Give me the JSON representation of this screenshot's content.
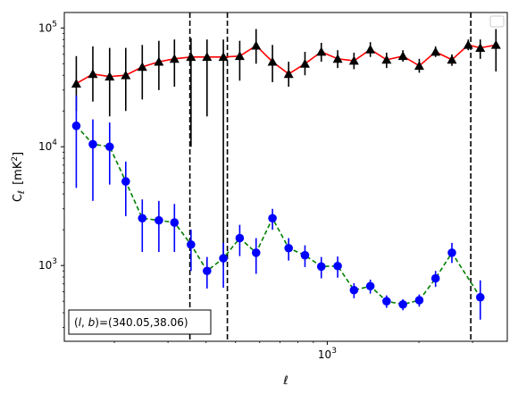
{
  "chart_data": {
    "type": "scatter",
    "x_scale": "log",
    "y_scale": "log",
    "xlabel": "ℓ",
    "ylabel": "C_ℓ  [mK²]",
    "xlim": [
      137,
      3900
    ],
    "ylim": [
      230,
      135000
    ],
    "x_ticks": [
      {
        "value": 1000,
        "base": "10",
        "exp": "3"
      }
    ],
    "y_ticks": [
      {
        "value": 1000,
        "base": "10",
        "exp": "3"
      },
      {
        "value": 10000,
        "base": "10",
        "exp": "4"
      },
      {
        "value": 100000,
        "base": "10",
        "exp": "5"
      }
    ],
    "legend": {
      "placement": "top-right",
      "entries": []
    },
    "vertical_lines": [
      {
        "x": 354,
        "style": "dashed",
        "color": "#000000"
      },
      {
        "x": 470,
        "style": "dashed",
        "color": "#000000"
      },
      {
        "x": 2960,
        "style": "dashed",
        "color": "#000000"
      }
    ],
    "series": [
      {
        "marker": "triangle",
        "marker_color": "#000000",
        "line_color": "#ff0000",
        "line_style": "solid",
        "points": [
          {
            "x": 150,
            "y": 34000,
            "ylo": 20000,
            "yhi": 58000
          },
          {
            "x": 170,
            "y": 41000,
            "ylo": 24000,
            "yhi": 70000
          },
          {
            "x": 193,
            "y": 39000,
            "ylo": 18000,
            "yhi": 68000
          },
          {
            "x": 218,
            "y": 40000,
            "ylo": 20000,
            "yhi": 68000
          },
          {
            "x": 247,
            "y": 47000,
            "ylo": 25000,
            "yhi": 72000
          },
          {
            "x": 280,
            "y": 52000,
            "ylo": 30000,
            "yhi": 78000
          },
          {
            "x": 315,
            "y": 55000,
            "ylo": 32000,
            "yhi": 80000
          },
          {
            "x": 357,
            "y": 57000,
            "ylo": 10000,
            "yhi": 82000
          },
          {
            "x": 403,
            "y": 57000,
            "ylo": 18000,
            "yhi": 80000
          },
          {
            "x": 456,
            "y": 57000,
            "ylo": 1000,
            "yhi": 80000
          },
          {
            "x": 516,
            "y": 58000,
            "ylo": 36000,
            "yhi": 78000
          },
          {
            "x": 584,
            "y": 71000,
            "ylo": 50000,
            "yhi": 98000
          },
          {
            "x": 661,
            "y": 52000,
            "ylo": 35000,
            "yhi": 72000
          },
          {
            "x": 747,
            "y": 41000,
            "ylo": 32000,
            "yhi": 52000
          },
          {
            "x": 845,
            "y": 50000,
            "ylo": 40000,
            "yhi": 63000
          },
          {
            "x": 956,
            "y": 63000,
            "ylo": 52000,
            "yhi": 75000
          },
          {
            "x": 1082,
            "y": 55000,
            "ylo": 46000,
            "yhi": 65000
          },
          {
            "x": 1224,
            "y": 53000,
            "ylo": 45000,
            "yhi": 62000
          },
          {
            "x": 1385,
            "y": 66000,
            "ylo": 57000,
            "yhi": 76000
          },
          {
            "x": 1566,
            "y": 54000,
            "ylo": 46000,
            "yhi": 62000
          },
          {
            "x": 1772,
            "y": 58000,
            "ylo": 52000,
            "yhi": 65000
          },
          {
            "x": 2005,
            "y": 48000,
            "ylo": 42000,
            "yhi": 55000
          },
          {
            "x": 2268,
            "y": 63000,
            "ylo": 57000,
            "yhi": 70000
          },
          {
            "x": 2566,
            "y": 54000,
            "ylo": 48000,
            "yhi": 60000
          },
          {
            "x": 2903,
            "y": 72000,
            "ylo": 65000,
            "yhi": 80000
          },
          {
            "x": 3180,
            "y": 68000,
            "ylo": 55000,
            "yhi": 80000
          },
          {
            "x": 3580,
            "y": 72000,
            "ylo": 43000,
            "yhi": 98000
          }
        ]
      },
      {
        "marker": "circle",
        "marker_color": "#0000ff",
        "line_color": "#008000",
        "line_style": "dashed",
        "points": [
          {
            "x": 150,
            "y": 15000,
            "ylo": 4500,
            "yhi": 27000
          },
          {
            "x": 170,
            "y": 10500,
            "ylo": 3500,
            "yhi": 17000
          },
          {
            "x": 193,
            "y": 10000,
            "ylo": 4800,
            "yhi": 16000
          },
          {
            "x": 218,
            "y": 5100,
            "ylo": 2600,
            "yhi": 7500
          },
          {
            "x": 247,
            "y": 2500,
            "ylo": 1300,
            "yhi": 3600
          },
          {
            "x": 280,
            "y": 2400,
            "ylo": 1300,
            "yhi": 3500
          },
          {
            "x": 315,
            "y": 2300,
            "ylo": 1300,
            "yhi": 3300
          },
          {
            "x": 357,
            "y": 1500,
            "ylo": 900,
            "yhi": 2000
          },
          {
            "x": 403,
            "y": 900,
            "ylo": 640,
            "yhi": 1180
          },
          {
            "x": 456,
            "y": 1150,
            "ylo": 650,
            "yhi": 1550
          },
          {
            "x": 516,
            "y": 1700,
            "ylo": 1200,
            "yhi": 2200
          },
          {
            "x": 584,
            "y": 1280,
            "ylo": 850,
            "yhi": 1700
          },
          {
            "x": 661,
            "y": 2500,
            "ylo": 2000,
            "yhi": 3000
          },
          {
            "x": 747,
            "y": 1400,
            "ylo": 1100,
            "yhi": 1700
          },
          {
            "x": 845,
            "y": 1220,
            "ylo": 970,
            "yhi": 1480
          },
          {
            "x": 956,
            "y": 980,
            "ylo": 780,
            "yhi": 1180
          },
          {
            "x": 1082,
            "y": 990,
            "ylo": 790,
            "yhi": 1190
          },
          {
            "x": 1224,
            "y": 620,
            "ylo": 530,
            "yhi": 710
          },
          {
            "x": 1385,
            "y": 670,
            "ylo": 580,
            "yhi": 760
          },
          {
            "x": 1566,
            "y": 500,
            "ylo": 440,
            "yhi": 560
          },
          {
            "x": 1772,
            "y": 470,
            "ylo": 420,
            "yhi": 520
          },
          {
            "x": 2005,
            "y": 510,
            "ylo": 450,
            "yhi": 570
          },
          {
            "x": 2268,
            "y": 780,
            "ylo": 660,
            "yhi": 900
          },
          {
            "x": 2566,
            "y": 1280,
            "ylo": 1050,
            "yhi": 1550
          },
          {
            "x": 3180,
            "y": 540,
            "ylo": 350,
            "yhi": 750
          }
        ]
      }
    ],
    "annotation": {
      "text": "(l, b)=(340.05,38.06)",
      "placement": "bottom-left"
    }
  }
}
